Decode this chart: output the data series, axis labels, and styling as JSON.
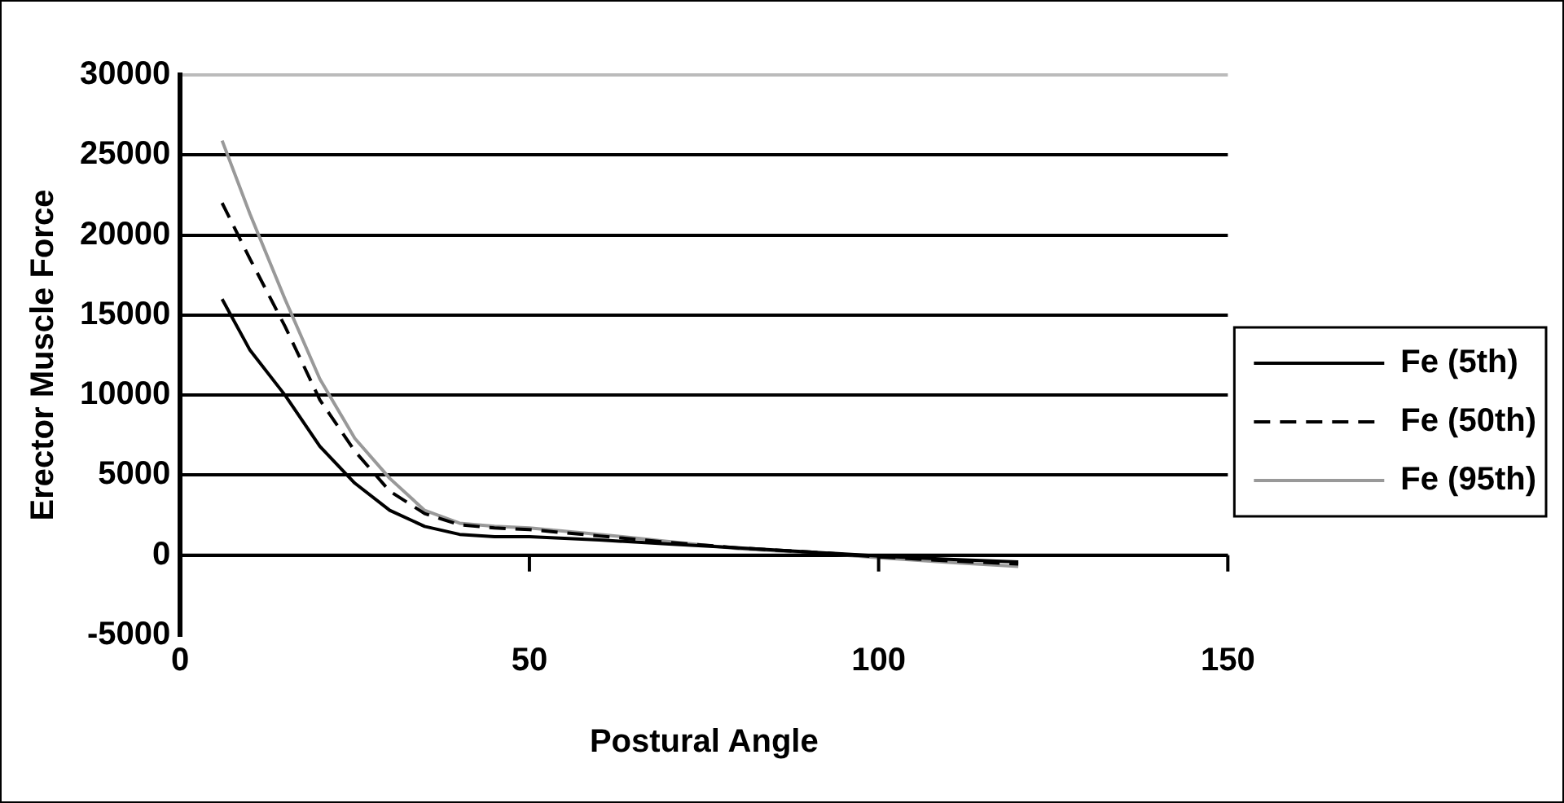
{
  "chart_data": {
    "type": "line",
    "xlabel": "Postural Angle",
    "ylabel": "Erector Muscle Force",
    "xlim": [
      0,
      150
    ],
    "xticks": [
      0,
      50,
      100,
      150
    ],
    "ylim": [
      -5000,
      30000
    ],
    "yticks": [
      -5000,
      0,
      5000,
      10000,
      15000,
      20000,
      25000,
      30000
    ],
    "grid": "y",
    "legend": "right",
    "marker": "none",
    "series": [
      {
        "name": "Fe (5th)",
        "color": "#000000",
        "line_style": "solid",
        "x": [
          6,
          10,
          15,
          20,
          25,
          30,
          35,
          40,
          45,
          50,
          60,
          70,
          80,
          90,
          100,
          110,
          120
        ],
        "values": [
          16000,
          12800,
          10000,
          6800,
          4500,
          2800,
          1800,
          1300,
          1150,
          1150,
          950,
          700,
          450,
          200,
          -50,
          -250,
          -420
        ]
      },
      {
        "name": "Fe (50th)",
        "color": "#000000",
        "line_style": "dashed",
        "x": [
          6,
          10,
          15,
          20,
          25,
          30,
          35,
          40,
          45,
          50,
          60,
          70,
          80,
          90,
          100,
          110,
          120
        ],
        "values": [
          22000,
          18500,
          14300,
          9700,
          6500,
          4000,
          2600,
          1900,
          1700,
          1600,
          1200,
          800,
          450,
          200,
          -100,
          -350,
          -550
        ]
      },
      {
        "name": "Fe (95th)",
        "color": "#999999",
        "line_style": "solid",
        "x": [
          6,
          10,
          15,
          20,
          25,
          30,
          35,
          40,
          45,
          50,
          60,
          70,
          80,
          90,
          100,
          110,
          120
        ],
        "values": [
          25900,
          21300,
          16000,
          11000,
          7300,
          4800,
          2800,
          2000,
          1800,
          1700,
          1300,
          850,
          400,
          150,
          -150,
          -450,
          -700
        ]
      }
    ]
  }
}
